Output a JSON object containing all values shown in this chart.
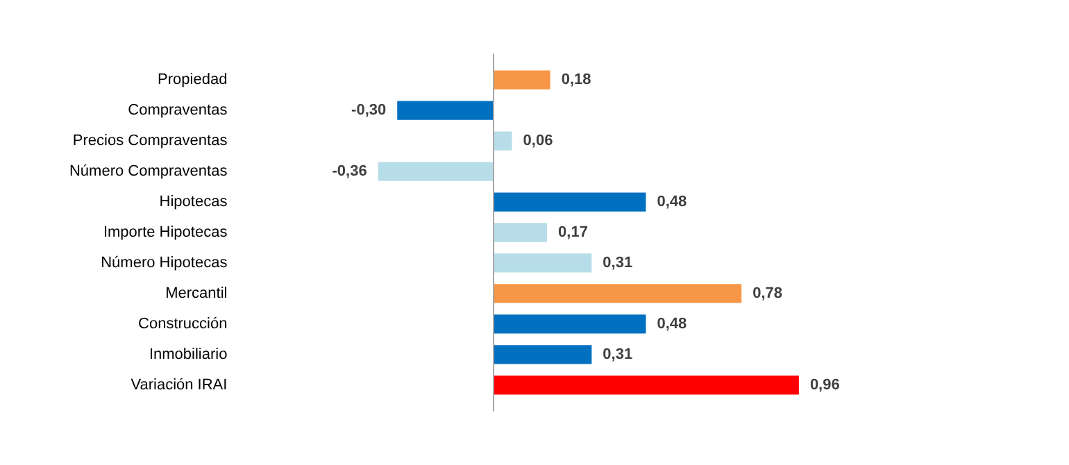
{
  "chart_data": {
    "type": "bar",
    "orientation": "horizontal",
    "categories": [
      "Propiedad",
      "Compraventas",
      "Precios Compraventas",
      "Número Compraventas",
      "Hipotecas",
      "Importe Hipotecas",
      "Número Hipotecas",
      "Mercantil",
      "Construcción",
      "Inmobiliario",
      "Variación IRAI"
    ],
    "values": [
      0.18,
      -0.3,
      0.06,
      -0.36,
      0.48,
      0.17,
      0.31,
      0.78,
      0.48,
      0.31,
      0.96
    ],
    "colors": [
      "#f79646",
      "#0070c0",
      "#b7dee8",
      "#b7dee8",
      "#0070c0",
      "#b7dee8",
      "#b7dee8",
      "#f79646",
      "#0070c0",
      "#0070c0",
      "#ff0000"
    ],
    "value_labels": [
      "0,18",
      "-0,30",
      "0,06",
      "-0,36",
      "0,48",
      "0,17",
      "0,31",
      "0,78",
      "0,48",
      "0,31",
      "0,96"
    ],
    "grid": false,
    "legend": false
  }
}
